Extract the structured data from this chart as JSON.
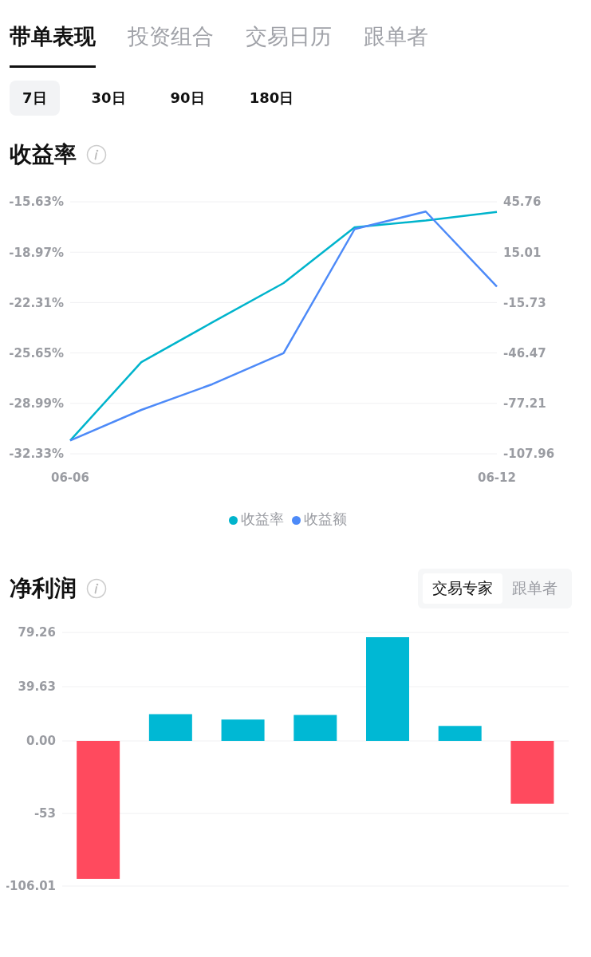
{
  "chart_data": [
    {
      "type": "line",
      "title": "收益率",
      "annotations": [
        "带单表现",
        "投资组合",
        "交易日历",
        "跟单者",
        "7日",
        "30日",
        "90日",
        "180日"
      ],
      "categories": [
        "06-06",
        null,
        null,
        null,
        null,
        null,
        "06-12"
      ],
      "series": [
        {
          "name": "收益率",
          "color": "#00b4cc",
          "values": [
            -31.45,
            -26.26,
            -23.62,
            -21.02,
            -17.32,
            -16.87,
            -16.3
          ]
        },
        {
          "name": "收益额",
          "color": "#4d8af8",
          "axis": "y2",
          "values": [
            -99.9,
            -81.2,
            -65.5,
            -46.6,
            29.1,
            39.8,
            -6.0
          ]
        }
      ],
      "ylim": [
        -32.33,
        -15.63
      ],
      "yticks": [
        {
          "value": -32.33,
          "label": "-32.33%"
        },
        {
          "value": -28.99,
          "label": "-28.99%"
        },
        {
          "value": -25.65,
          "label": "-25.65%"
        },
        {
          "value": -22.31,
          "label": "-22.31%"
        },
        {
          "value": -18.97,
          "label": "-18.97%"
        },
        {
          "value": -15.63,
          "label": "-15.63%"
        }
      ],
      "y2lim": [
        -107.96,
        45.76
      ],
      "y2ticks": [
        -107.96,
        -77.21,
        -46.47,
        -15.73,
        15.01,
        45.76
      ],
      "grid": "y",
      "legend": "bottom",
      "marker": "none",
      "line_style": "solid"
    },
    {
      "type": "bar",
      "title": "净利润",
      "annotations": [
        "交易专家",
        "跟单者"
      ],
      "categories": [
        null,
        null,
        null,
        null,
        null,
        null,
        null
      ],
      "values": [
        -100.8,
        19.6,
        15.6,
        19.0,
        75.7,
        10.9,
        -45.8
      ],
      "colors": [
        "#ff4a5e",
        "#00b8d4",
        "#00b8d4",
        "#00b8d4",
        "#00b8d4",
        "#00b8d4",
        "#ff4a5e"
      ],
      "ylim": [
        -106.01,
        79.26
      ],
      "yticks": [
        -106.01,
        -53,
        {
          "value": 0,
          "label": "0.00"
        },
        39.63,
        79.26
      ],
      "grid": "y",
      "tick_labels": "y"
    }
  ]
}
